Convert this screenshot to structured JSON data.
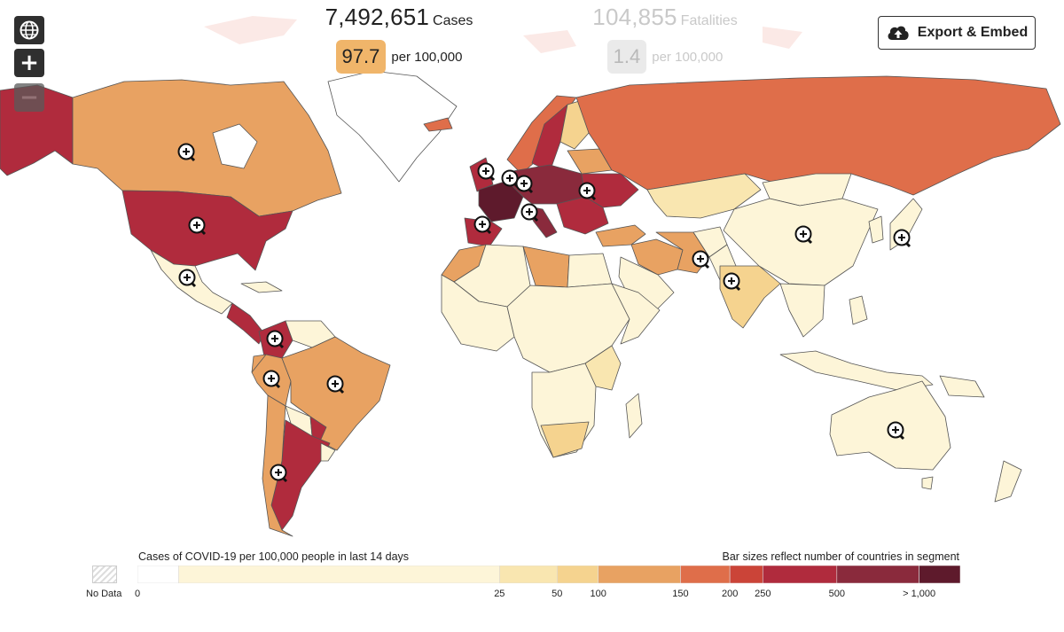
{
  "stats": {
    "cases": {
      "total": "7,492,651",
      "unit": "Cases",
      "rate": "97.7",
      "per": "per 100,000",
      "rate_color": "#f0b56a"
    },
    "fatalities": {
      "total": "104,855",
      "unit": "Fatalities",
      "rate": "1.4",
      "per": "per 100,000",
      "rate_color": "#eaeaea"
    }
  },
  "export_button": {
    "label": "Export & Embed",
    "icon": "cloud-upload-icon"
  },
  "map_controls": [
    {
      "name": "globe-button",
      "icon": "globe-icon"
    },
    {
      "name": "zoom-in-button",
      "icon": "plus-icon",
      "label": "+"
    },
    {
      "name": "zoom-out-button",
      "icon": "minus-icon",
      "label": "−"
    }
  ],
  "legend": {
    "title": "Cases of COVID-19 per 100,000 people in last 14 days",
    "note": "Bar sizes reflect number of countries in segment",
    "no_data_label": "No Data",
    "segments": [
      {
        "color": "#ffffff",
        "share": 0.05
      },
      {
        "color": "#fdf5d8",
        "share": 0.39
      },
      {
        "color": "#f9e6b0",
        "share": 0.07
      },
      {
        "color": "#f5d38f",
        "share": 0.05
      },
      {
        "color": "#e8a262",
        "share": 0.1
      },
      {
        "color": "#df6e4a",
        "share": 0.06
      },
      {
        "color": "#cb4438",
        "share": 0.04
      },
      {
        "color": "#b02b3d",
        "share": 0.09
      },
      {
        "color": "#8a2a3c",
        "share": 0.1
      },
      {
        "color": "#5e1a2c",
        "share": 0.05
      }
    ],
    "ticks": [
      "0",
      "25",
      "50",
      "100",
      "150",
      "200",
      "250",
      "500",
      "> 1,000"
    ]
  },
  "colors": {
    "white": "#ffffff",
    "pale": "#fdf5d8",
    "light": "#f9e6b0",
    "sand": "#f5d38f",
    "orange": "#e8a262",
    "redorange": "#df6e4a",
    "red": "#cb4438",
    "crimson": "#b02b3d",
    "wine": "#8a2a3c",
    "dark": "#5e1a2c"
  }
}
